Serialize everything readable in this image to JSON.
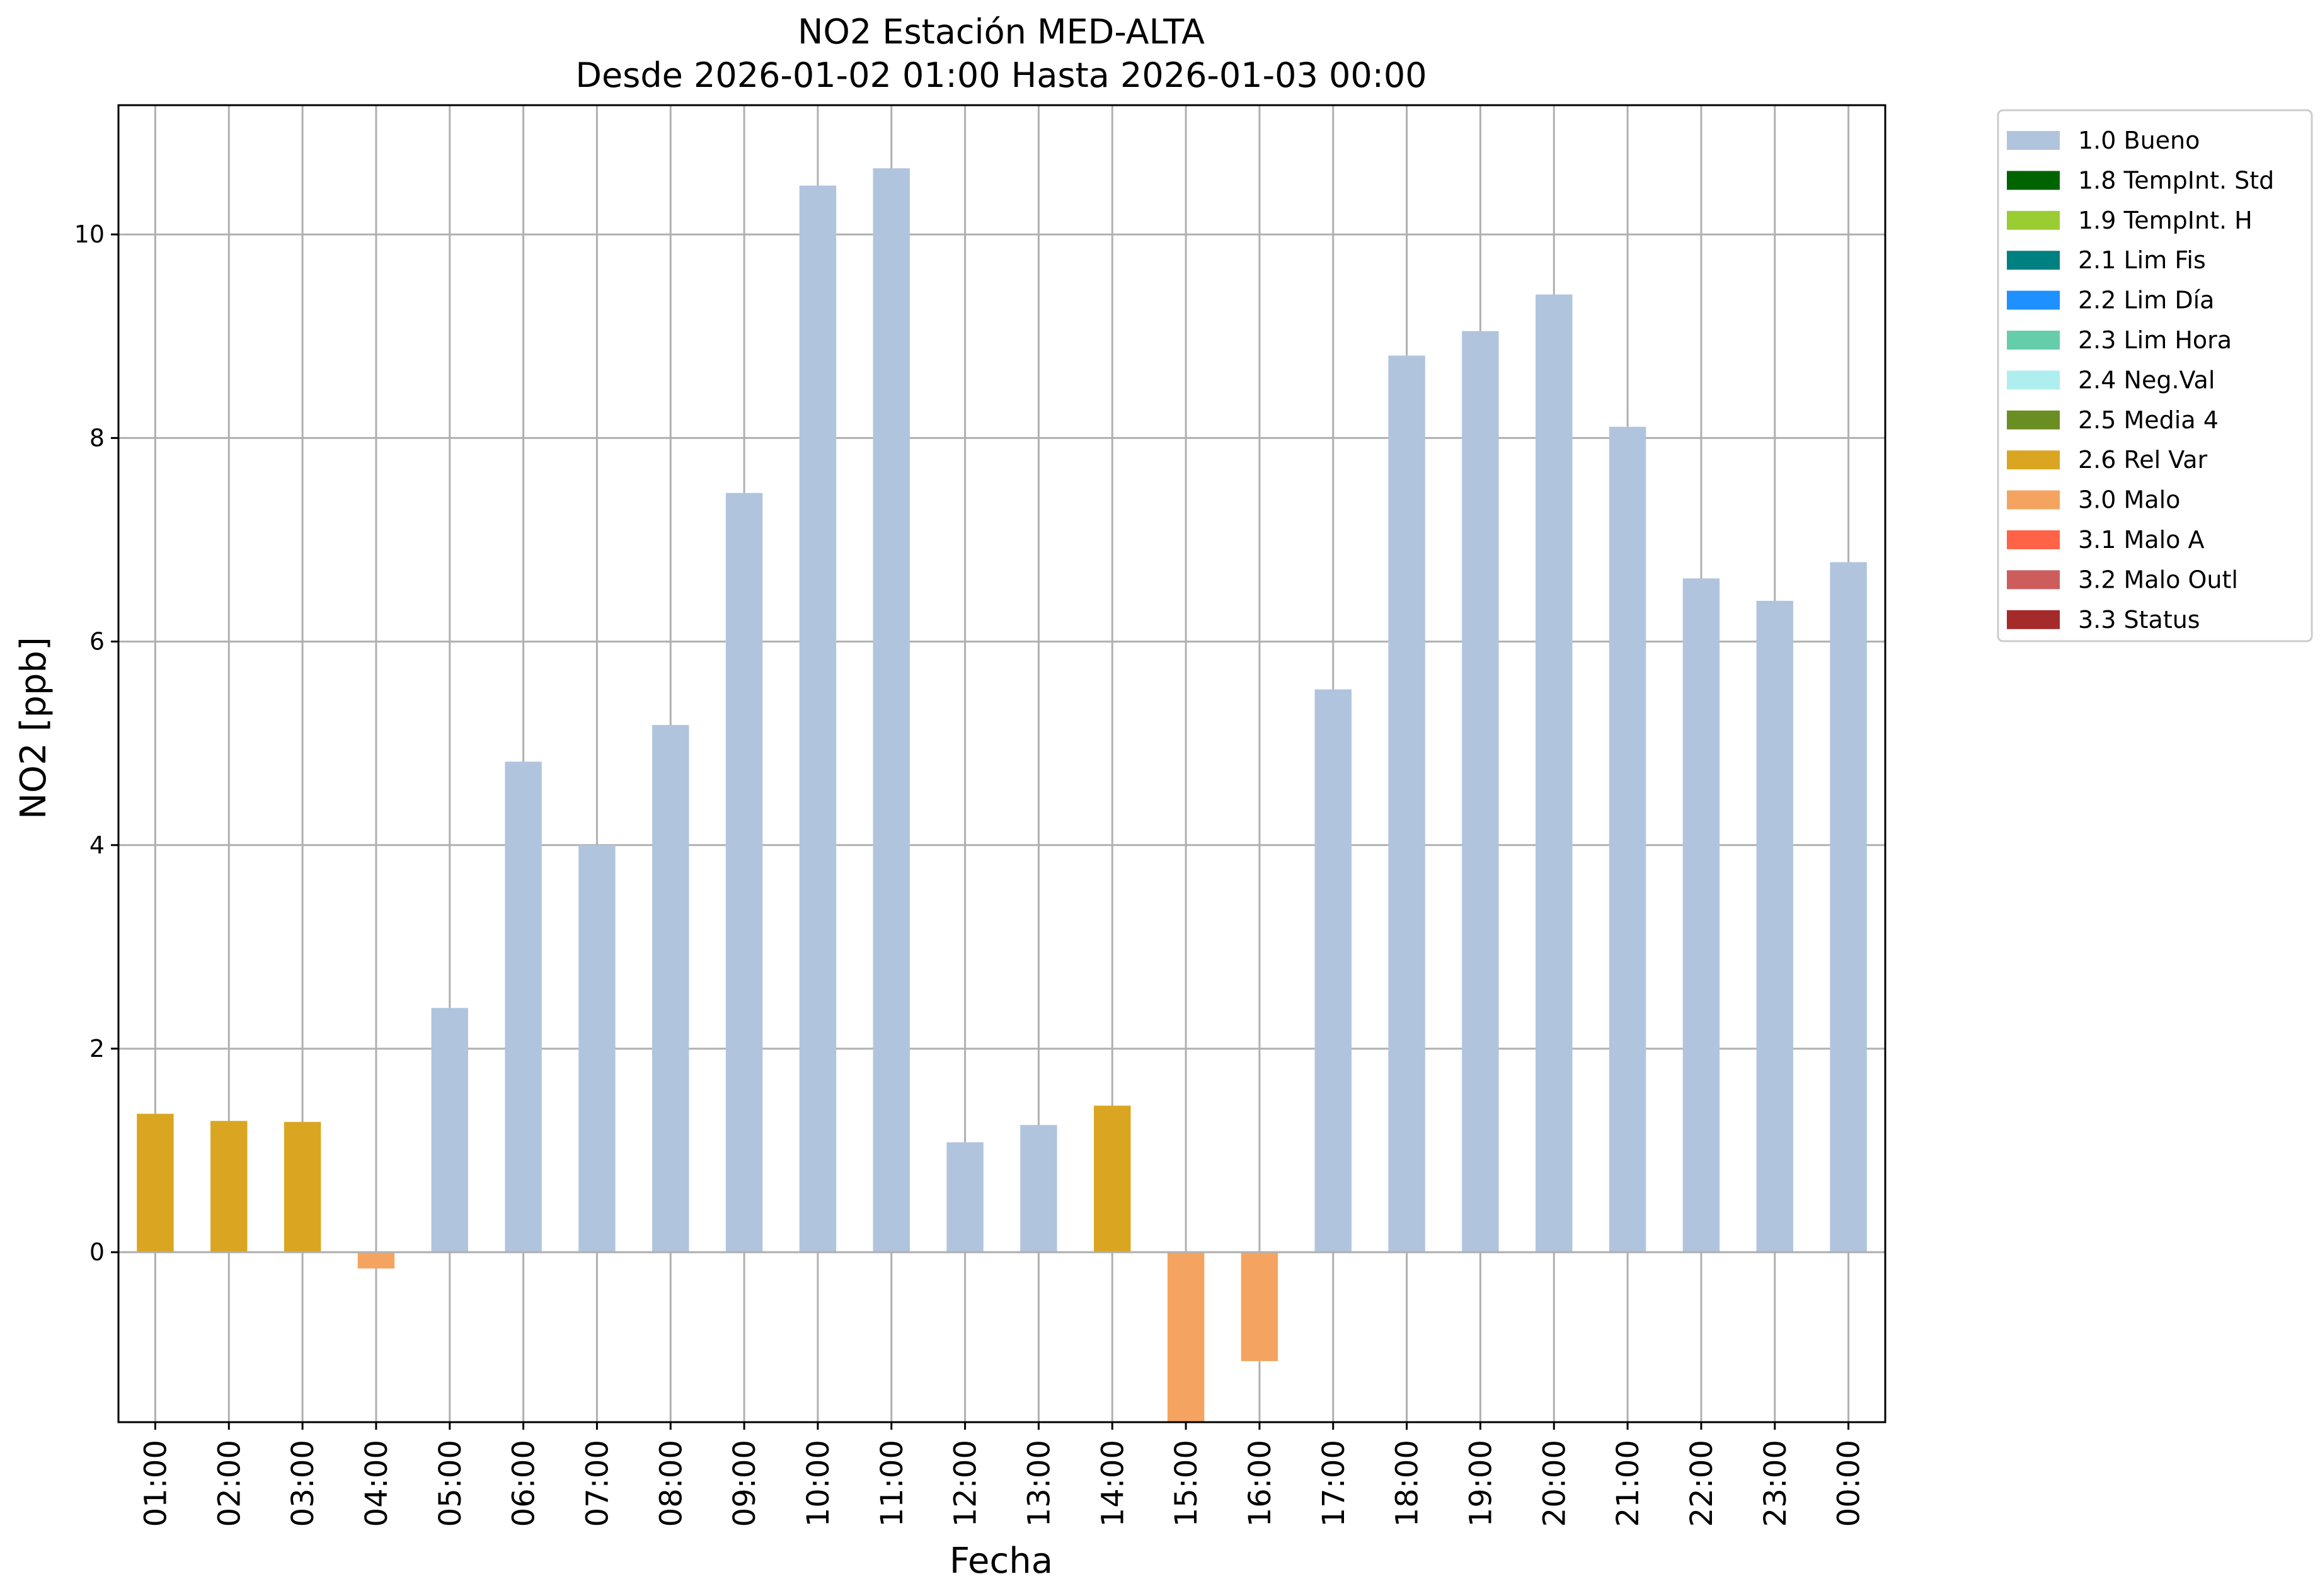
{
  "chart_data": {
    "type": "bar",
    "title": "NO2 Estación MED-ALTA",
    "subtitle": "Desde 2026-01-02 01:00 Hasta 2026-01-03 00:00",
    "xlabel": "Fecha",
    "ylabel": "NO2 [ppb]",
    "ylim": [
      -1.67,
      11.27
    ],
    "yticks": [
      "0",
      "2",
      "4",
      "6",
      "8",
      "10"
    ],
    "grid": true,
    "legend_position": "outside-right-top",
    "categories": [
      "01:00",
      "02:00",
      "03:00",
      "04:00",
      "05:00",
      "06:00",
      "07:00",
      "08:00",
      "09:00",
      "10:00",
      "11:00",
      "12:00",
      "13:00",
      "14:00",
      "15:00",
      "16:00",
      "17:00",
      "18:00",
      "19:00",
      "20:00",
      "21:00",
      "22:00",
      "23:00",
      "00:00"
    ],
    "values": [
      1.36,
      1.29,
      1.28,
      -0.16,
      2.4,
      4.82,
      4.0,
      5.18,
      7.46,
      10.48,
      10.65,
      1.08,
      1.25,
      1.44,
      -1.67,
      -1.07,
      5.53,
      8.81,
      9.05,
      9.41,
      8.11,
      6.62,
      6.4,
      6.78
    ],
    "flags": [
      "2.6",
      "2.6",
      "2.6",
      "3.0",
      "1.0",
      "1.0",
      "1.0",
      "1.0",
      "1.0",
      "1.0",
      "1.0",
      "1.0",
      "1.0",
      "2.6",
      "3.0",
      "3.0",
      "1.0",
      "1.0",
      "1.0",
      "1.0",
      "1.0",
      "1.0",
      "1.0",
      "1.0"
    ],
    "legend": [
      {
        "code": "1.0",
        "label": "1.0 Bueno",
        "color": "#b0c4de"
      },
      {
        "code": "1.8",
        "label": "1.8 TempInt. Std",
        "color": "#006400"
      },
      {
        "code": "1.9",
        "label": "1.9 TempInt. H",
        "color": "#9acd32"
      },
      {
        "code": "2.1",
        "label": "2.1 Lim Fis",
        "color": "#008080"
      },
      {
        "code": "2.2",
        "label": "2.2 Lim Día",
        "color": "#1e90ff"
      },
      {
        "code": "2.3",
        "label": "2.3 Lim Hora",
        "color": "#66cdaa"
      },
      {
        "code": "2.4",
        "label": "2.4 Neg.Val",
        "color": "#afeeee"
      },
      {
        "code": "2.5",
        "label": "2.5 Media 4",
        "color": "#6b8e23"
      },
      {
        "code": "2.6",
        "label": "2.6 Rel Var",
        "color": "#daa520"
      },
      {
        "code": "3.0",
        "label": "3.0 Malo",
        "color": "#f4a460"
      },
      {
        "code": "3.1",
        "label": "3.1 Malo A",
        "color": "#ff6347"
      },
      {
        "code": "3.2",
        "label": "3.2 Malo Outl",
        "color": "#cd5c5c"
      },
      {
        "code": "3.3",
        "label": "3.3 Status",
        "color": "#a52a2a"
      }
    ]
  }
}
